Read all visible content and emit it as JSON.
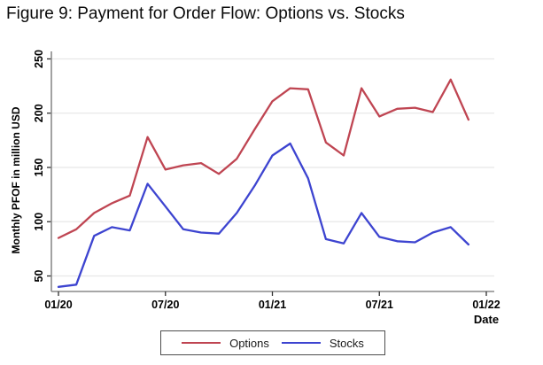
{
  "figure": {
    "title": "Figure 9: Payment for Order Flow: Options vs. Stocks"
  },
  "chart_data": {
    "type": "line",
    "x": [
      "01/20",
      "02/20",
      "03/20",
      "04/20",
      "05/20",
      "06/20",
      "07/20",
      "08/20",
      "09/20",
      "10/20",
      "11/20",
      "12/20",
      "01/21",
      "02/21",
      "03/21",
      "04/21",
      "05/21",
      "06/21",
      "07/21",
      "08/21",
      "09/21",
      "10/21",
      "11/21",
      "12/21"
    ],
    "series": [
      {
        "name": "Options",
        "color": "#bf4552",
        "values": [
          85,
          93,
          108,
          117,
          124,
          178,
          148,
          152,
          154,
          144,
          158,
          185,
          211,
          223,
          222,
          173,
          161,
          223,
          197,
          204,
          205,
          201,
          231,
          194
        ]
      },
      {
        "name": "Stocks",
        "color": "#3d44d0",
        "values": [
          40,
          42,
          87,
          95,
          92,
          135,
          114,
          93,
          90,
          89,
          108,
          133,
          161,
          172,
          140,
          84,
          80,
          108,
          86,
          82,
          81,
          90,
          95,
          79
        ]
      }
    ],
    "title": "Figure 9: Payment for Order Flow: Options vs. Stocks",
    "xlabel": "Date",
    "ylabel": "Monthly PFOF in million USD",
    "yticks": [
      50,
      100,
      150,
      200,
      250
    ],
    "xtick_labels": [
      "01/20",
      "07/20",
      "01/21",
      "07/21",
      "01/22"
    ],
    "xtick_indices": [
      0,
      6,
      12,
      18,
      24
    ],
    "ylim": [
      35,
      258
    ],
    "grid": true,
    "legend_position": "bottom-center"
  },
  "colors": {
    "grid": "#e8e8e8",
    "axis": "#8a8a8a",
    "tick": "#303030",
    "text": "#000000"
  }
}
